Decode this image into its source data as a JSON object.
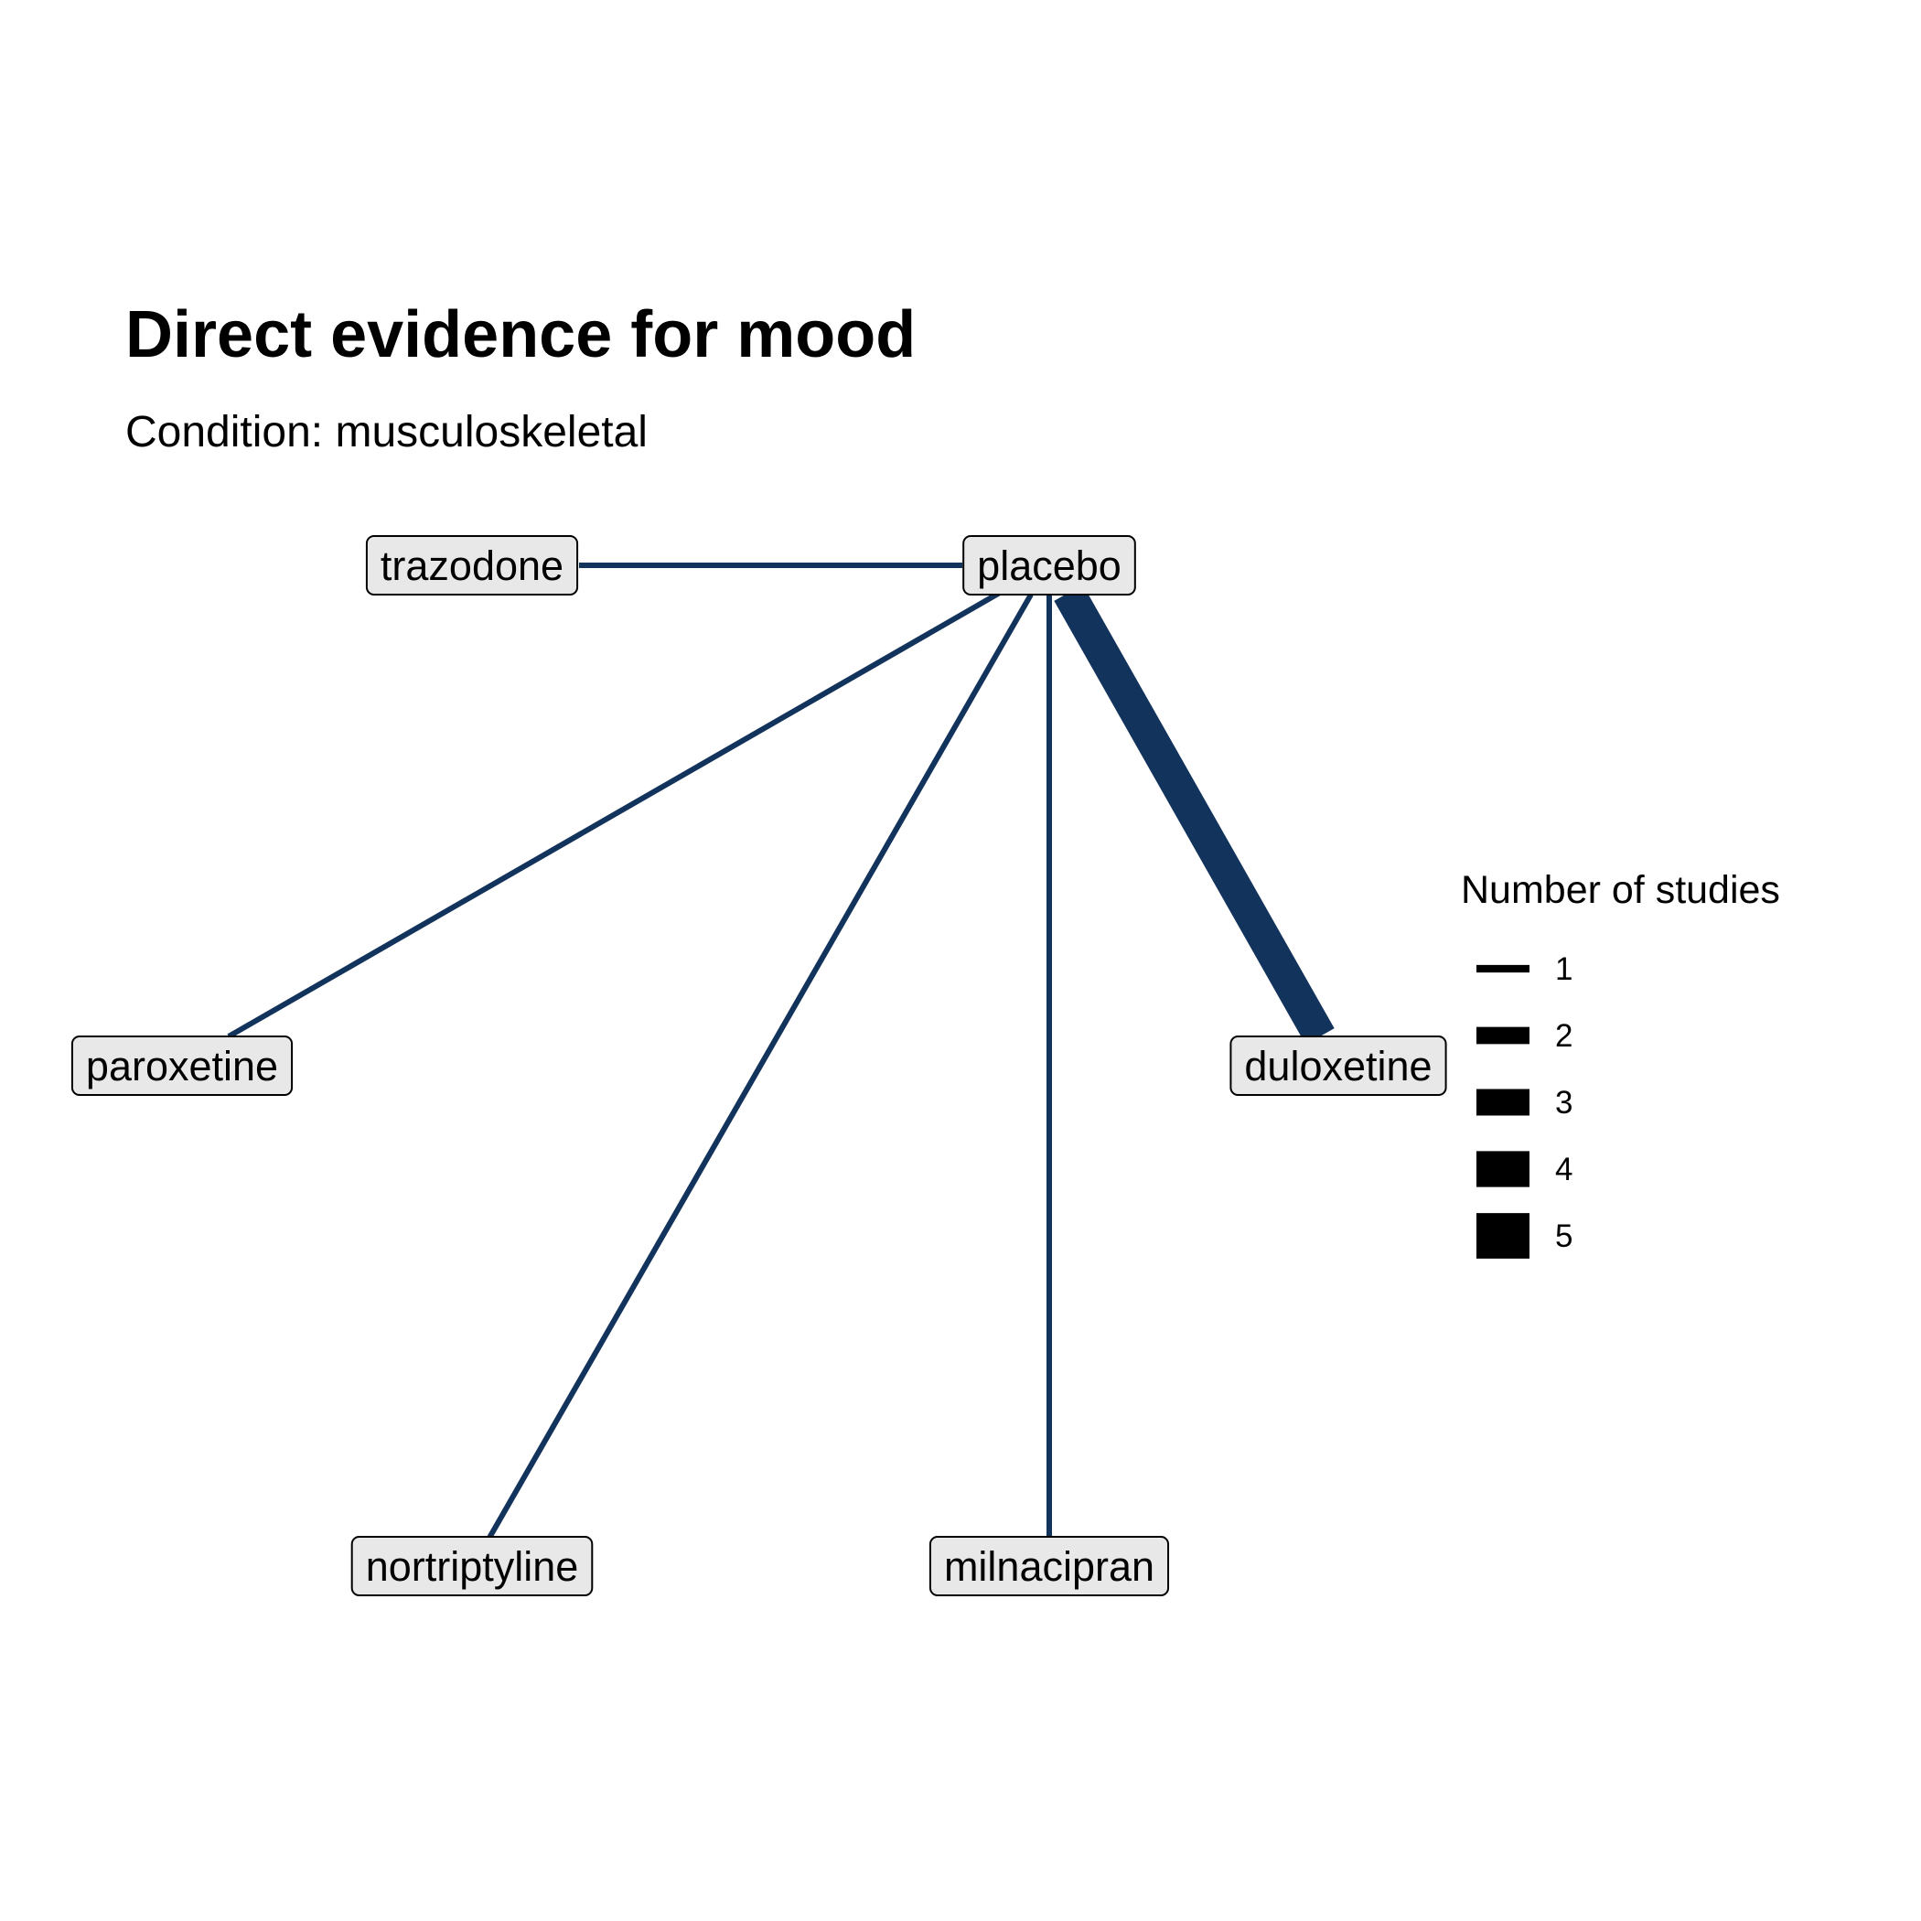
{
  "title": "Direct evidence for mood",
  "subtitle": "Condition: musculoskeletal",
  "edge_color": "#12335c",
  "node_fill": "#e8e8e8",
  "legend": {
    "title": "Number of studies",
    "items": [
      {
        "label": "1",
        "value": 1
      },
      {
        "label": "2",
        "value": 2
      },
      {
        "label": "3",
        "value": 3
      },
      {
        "label": "4",
        "value": 4
      },
      {
        "label": "5",
        "value": 5
      }
    ]
  },
  "nodes": [
    {
      "id": "trazodone",
      "label": "trazodone"
    },
    {
      "id": "placebo",
      "label": "placebo"
    },
    {
      "id": "paroxetine",
      "label": "paroxetine"
    },
    {
      "id": "duloxetine",
      "label": "duloxetine"
    },
    {
      "id": "nortriptyline",
      "label": "nortriptyline"
    },
    {
      "id": "milnacipran",
      "label": "milnacipran"
    }
  ],
  "edges": [
    {
      "from": "placebo",
      "to": "trazodone",
      "studies": 1
    },
    {
      "from": "placebo",
      "to": "paroxetine",
      "studies": 1
    },
    {
      "from": "placebo",
      "to": "nortriptyline",
      "studies": 1
    },
    {
      "from": "placebo",
      "to": "milnacipran",
      "studies": 1
    },
    {
      "from": "placebo",
      "to": "duloxetine",
      "studies": 5
    }
  ]
}
